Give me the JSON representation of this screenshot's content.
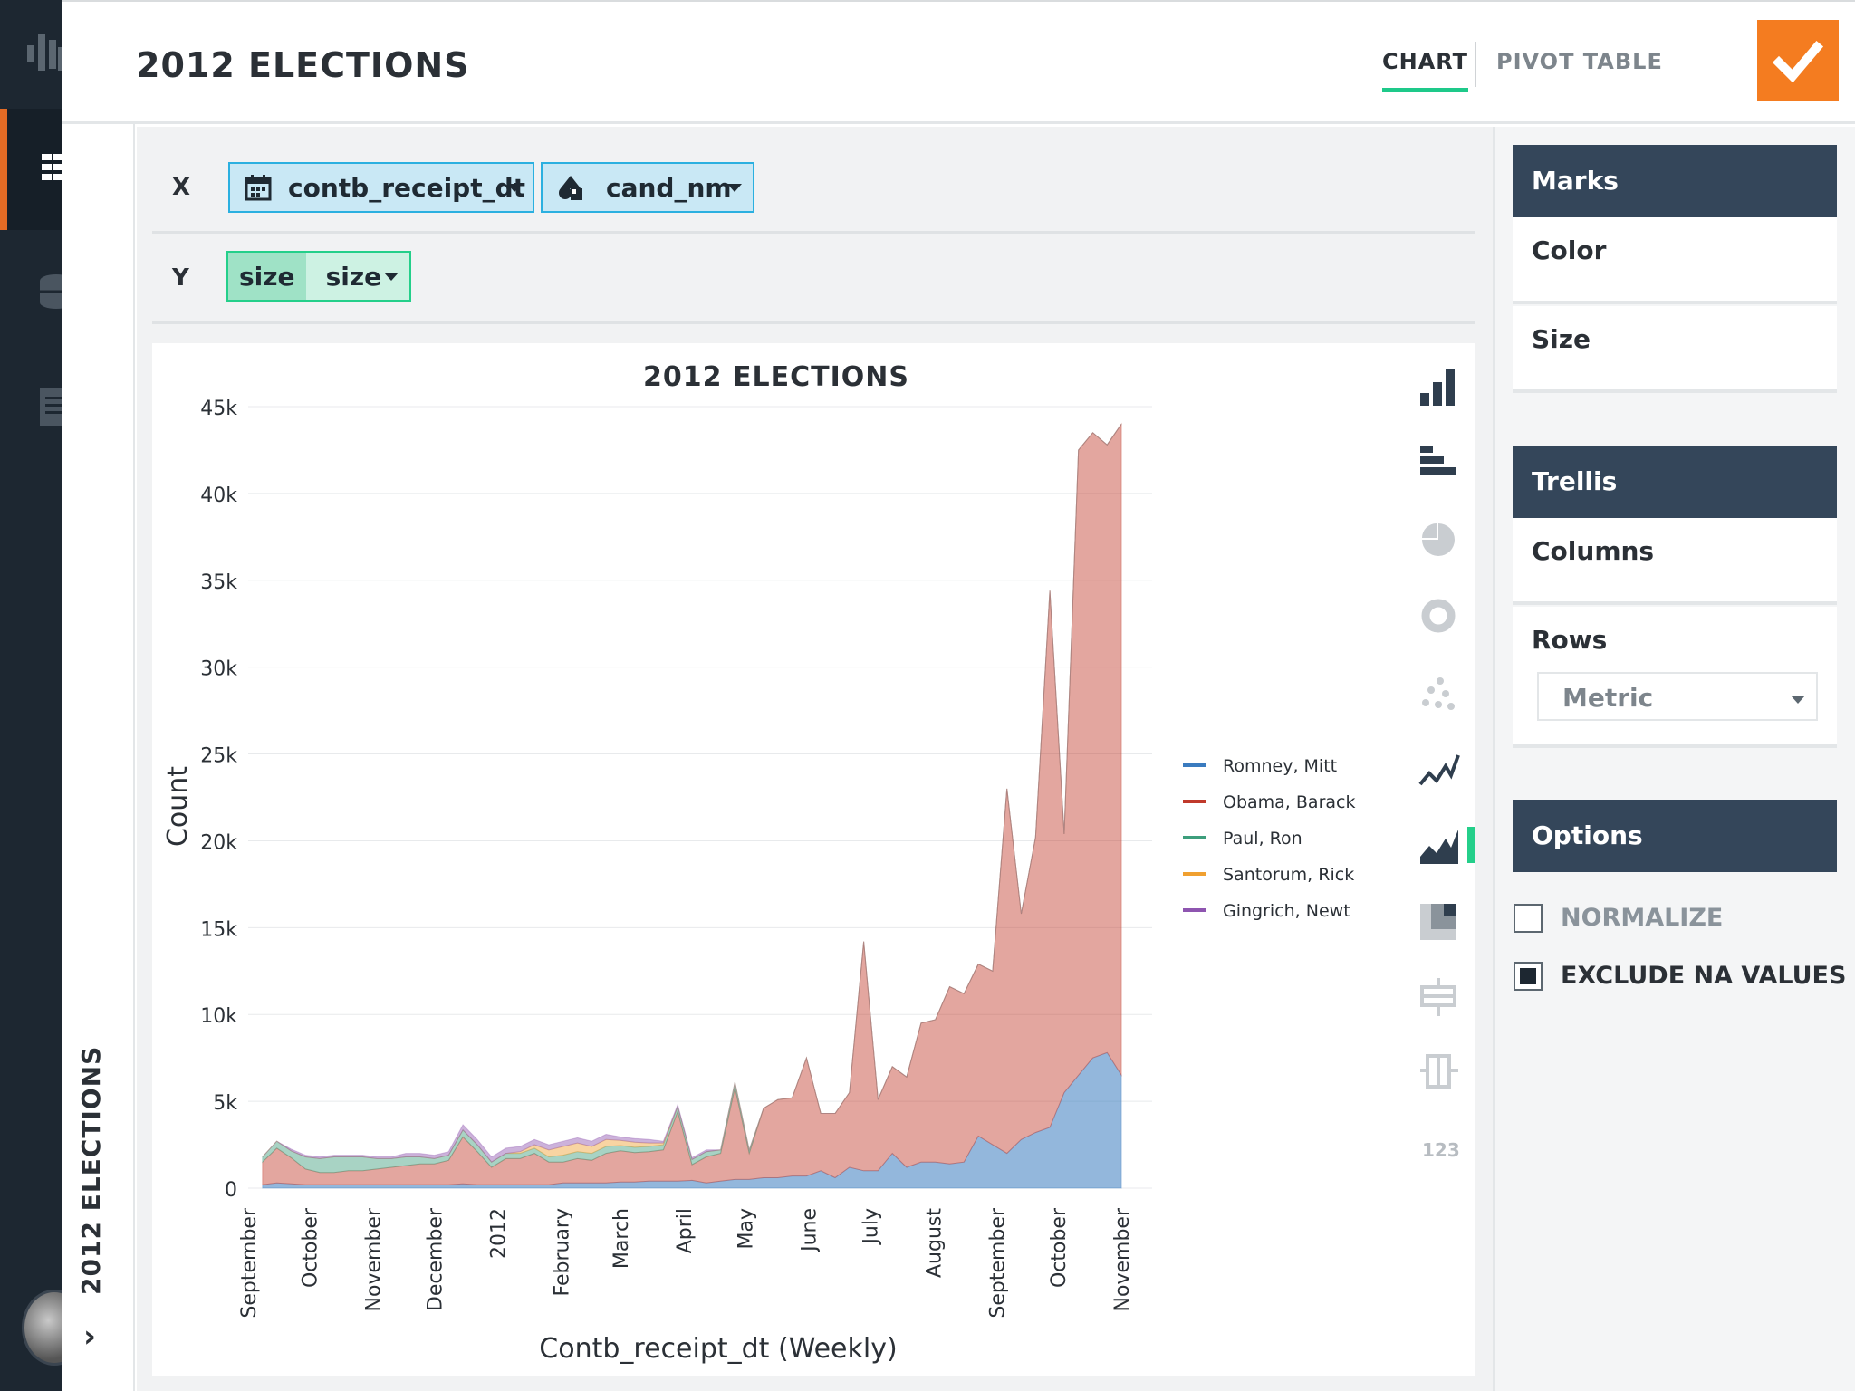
{
  "header": {
    "title": "2012 ELECTIONS",
    "tabs": [
      {
        "label": "CHART",
        "active": true
      },
      {
        "label": "PIVOT TABLE",
        "active": false
      }
    ],
    "confirm_icon": "check-icon"
  },
  "sidebar": {
    "vertical_title": "2012 ELECTIONS",
    "chevron": "›",
    "items": [
      "logo-icon",
      "grid-icon",
      "database-icon",
      "document-icon"
    ]
  },
  "shelves": {
    "x": {
      "label": "X",
      "pills": [
        {
          "icon": "calendar-icon",
          "label": "contb_receipt_dt"
        },
        {
          "icon": "shapes-icon",
          "label": "cand_nm"
        }
      ]
    },
    "y": {
      "label": "Y",
      "pill": {
        "aggregate": "size",
        "label": "size"
      }
    }
  },
  "chart_data": {
    "type": "area",
    "title": "2012 ELECTIONS",
    "xlabel": "Contb_receipt_dt (Weekly)",
    "ylabel": "Count",
    "ylim": [
      0,
      45000
    ],
    "yticks": [
      0,
      5000,
      10000,
      15000,
      20000,
      25000,
      30000,
      35000,
      40000,
      45000
    ],
    "ytick_labels": [
      "0",
      "5k",
      "10k",
      "15k",
      "20k",
      "25k",
      "30k",
      "35k",
      "40k",
      "45k"
    ],
    "x_month_ticks": [
      {
        "label": "September",
        "date": "2011-09-01"
      },
      {
        "label": "October",
        "date": "2011-10-01"
      },
      {
        "label": "November",
        "date": "2011-11-01"
      },
      {
        "label": "December",
        "date": "2011-12-01"
      },
      {
        "label": "2012",
        "date": "2012-01-01"
      },
      {
        "label": "February",
        "date": "2012-02-01"
      },
      {
        "label": "March",
        "date": "2012-03-01"
      },
      {
        "label": "April",
        "date": "2012-04-01"
      },
      {
        "label": "May",
        "date": "2012-05-01"
      },
      {
        "label": "June",
        "date": "2012-06-01"
      },
      {
        "label": "July",
        "date": "2012-07-01"
      },
      {
        "label": "August",
        "date": "2012-08-01"
      },
      {
        "label": "September",
        "date": "2012-09-01"
      },
      {
        "label": "October",
        "date": "2012-10-01"
      },
      {
        "label": "November",
        "date": "2012-11-01"
      }
    ],
    "x": [
      "2011-09-08",
      "2011-09-15",
      "2011-09-22",
      "2011-09-29",
      "2011-10-06",
      "2011-10-13",
      "2011-10-20",
      "2011-10-27",
      "2011-11-03",
      "2011-11-10",
      "2011-11-17",
      "2011-11-24",
      "2011-12-01",
      "2011-12-08",
      "2011-12-15",
      "2011-12-22",
      "2011-12-29",
      "2012-01-05",
      "2012-01-12",
      "2012-01-19",
      "2012-01-26",
      "2012-02-02",
      "2012-02-09",
      "2012-02-16",
      "2012-02-23",
      "2012-03-01",
      "2012-03-08",
      "2012-03-15",
      "2012-03-22",
      "2012-03-29",
      "2012-04-05",
      "2012-04-12",
      "2012-04-19",
      "2012-04-26",
      "2012-05-03",
      "2012-05-10",
      "2012-05-17",
      "2012-05-24",
      "2012-05-31",
      "2012-06-07",
      "2012-06-14",
      "2012-06-21",
      "2012-06-28",
      "2012-07-05",
      "2012-07-12",
      "2012-07-19",
      "2012-07-26",
      "2012-08-02",
      "2012-08-09",
      "2012-08-16",
      "2012-08-23",
      "2012-08-30",
      "2012-09-06",
      "2012-09-13",
      "2012-09-20",
      "2012-09-27",
      "2012-10-04",
      "2012-10-11",
      "2012-10-18",
      "2012-10-25",
      "2012-11-01"
    ],
    "series": [
      {
        "name": "Romney, Mitt",
        "color": "#3a7bbf",
        "values": [
          200,
          300,
          250,
          200,
          200,
          200,
          200,
          200,
          200,
          200,
          200,
          200,
          200,
          200,
          250,
          200,
          200,
          200,
          200,
          200,
          200,
          300,
          300,
          300,
          300,
          350,
          350,
          400,
          400,
          400,
          450,
          300,
          400,
          500,
          500,
          600,
          600,
          700,
          700,
          1000,
          600,
          1200,
          1000,
          1000,
          2000,
          1200,
          1500,
          1500,
          1400,
          1500,
          3000,
          2500,
          2000,
          2800,
          3200,
          3500,
          5500,
          6500,
          7500,
          7800,
          6500
        ]
      },
      {
        "name": "Obama, Barack",
        "color": "#c0392b",
        "values": [
          1300,
          2000,
          1500,
          900,
          700,
          700,
          800,
          800,
          900,
          1000,
          1100,
          1200,
          1200,
          1400,
          2700,
          1900,
          1000,
          1500,
          1500,
          1800,
          1300,
          1200,
          1400,
          1300,
          1700,
          1800,
          1700,
          1700,
          1800,
          4000,
          900,
          1500,
          1600,
          5300,
          1500,
          4000,
          4500,
          4500,
          6800,
          3300,
          3700,
          4300,
          13200,
          4100,
          5000,
          5200,
          8000,
          8200,
          10200,
          9700,
          9900,
          10000,
          21000,
          13000,
          17000,
          30900,
          14900,
          36000,
          36000,
          35000,
          37500
        ]
      },
      {
        "name": "Paul, Ron",
        "color": "#3d9e7c",
        "values": [
          300,
          400,
          400,
          700,
          800,
          900,
          800,
          800,
          600,
          500,
          500,
          400,
          300,
          300,
          400,
          400,
          300,
          300,
          300,
          300,
          300,
          400,
          400,
          400,
          400,
          300,
          300,
          300,
          300,
          300,
          300,
          300,
          200,
          300,
          200,
          0,
          0,
          0,
          0,
          0,
          0,
          0,
          0,
          0,
          0,
          0,
          0,
          0,
          0,
          0,
          0,
          0,
          0,
          0,
          0,
          0,
          0,
          0,
          0,
          0,
          0
        ]
      },
      {
        "name": "Santorum, Rick",
        "color": "#f0a030",
        "values": [
          0,
          0,
          0,
          0,
          0,
          0,
          0,
          0,
          0,
          0,
          0,
          0,
          0,
          0,
          0,
          0,
          0,
          0,
          100,
          200,
          400,
          500,
          500,
          400,
          400,
          300,
          300,
          200,
          100,
          0,
          0,
          0,
          0,
          0,
          0,
          0,
          0,
          0,
          0,
          0,
          0,
          0,
          0,
          0,
          0,
          0,
          0,
          0,
          0,
          0,
          0,
          0,
          0,
          0,
          0,
          0,
          0,
          0,
          0,
          0,
          0
        ]
      },
      {
        "name": "Gingrich, Newt",
        "color": "#8e55b0",
        "values": [
          0,
          0,
          100,
          100,
          100,
          100,
          100,
          100,
          100,
          100,
          200,
          200,
          200,
          200,
          300,
          300,
          300,
          300,
          300,
          300,
          300,
          300,
          300,
          300,
          300,
          200,
          200,
          200,
          100,
          100,
          100,
          100,
          0,
          0,
          0,
          0,
          0,
          0,
          0,
          0,
          0,
          0,
          0,
          0,
          0,
          0,
          0,
          0,
          0,
          0,
          0,
          0,
          0,
          0,
          0,
          0,
          0,
          0,
          0,
          0,
          0
        ]
      }
    ],
    "legend_position": "right",
    "grid": true
  },
  "chart_types": [
    "bar-chart-icon",
    "horizontal-bar-icon",
    "pie-chart-icon",
    "donut-chart-icon",
    "scatter-icon",
    "line-chart-icon",
    "area-chart-icon",
    "heatmap-icon",
    "box-plot-icon",
    "histogram-icon"
  ],
  "chart_types_number_label": "123",
  "right_panel": {
    "marks": {
      "title": "Marks",
      "rows": [
        "Color",
        "Size"
      ]
    },
    "trellis": {
      "title": "Trellis",
      "rows": [
        "Columns",
        "Rows"
      ],
      "rows_select": "Metric"
    },
    "options": {
      "title": "Options",
      "normalize": {
        "label": "NORMALIZE",
        "checked": false
      },
      "exclude_na": {
        "label": "EXCLUDE NA VALUES",
        "checked": true
      }
    }
  }
}
